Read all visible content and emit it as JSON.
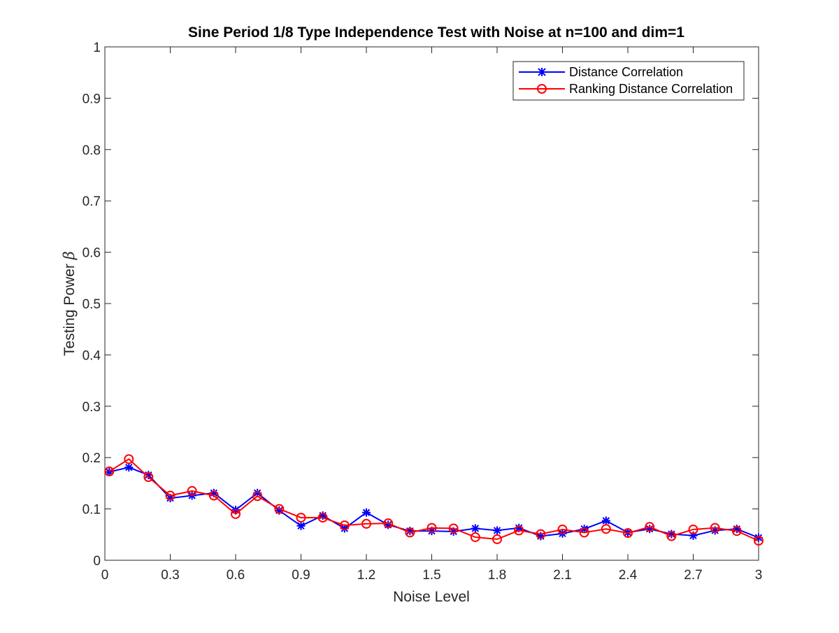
{
  "chart_data": {
    "type": "line",
    "title": "Sine Period 1/8 Type Independence Test with Noise at n=100 and dim=1",
    "xlabel": "Noise Level",
    "ylabel_text": "Testing Power",
    "ylabel_symbol": "β",
    "xlim": [
      0,
      3
    ],
    "ylim": [
      0,
      1
    ],
    "xticks": [
      "0",
      "0.3",
      "0.6",
      "0.9",
      "1.2",
      "1.5",
      "1.8",
      "2.1",
      "2.4",
      "2.7",
      "3"
    ],
    "yticks": [
      "0",
      "0.1",
      "0.2",
      "0.3",
      "0.4",
      "0.5",
      "0.6",
      "0.7",
      "0.8",
      "0.9",
      "1"
    ],
    "grid": false,
    "legend_position": "top-right",
    "x": [
      0.02,
      0.11,
      0.2,
      0.3,
      0.4,
      0.5,
      0.6,
      0.7,
      0.8,
      0.9,
      1.0,
      1.1,
      1.2,
      1.3,
      1.4,
      1.5,
      1.6,
      1.7,
      1.8,
      1.9,
      2.0,
      2.1,
      2.2,
      2.3,
      2.4,
      2.5,
      2.6,
      2.7,
      2.8,
      2.9,
      3.0
    ],
    "series": [
      {
        "name": "Distance Correlation",
        "color": "#0000ff",
        "marker": "asterisk",
        "values": [
          0.172,
          0.181,
          0.166,
          0.121,
          0.126,
          0.131,
          0.098,
          0.131,
          0.097,
          0.067,
          0.087,
          0.062,
          0.093,
          0.069,
          0.057,
          0.057,
          0.056,
          0.062,
          0.058,
          0.063,
          0.047,
          0.052,
          0.061,
          0.077,
          0.054,
          0.061,
          0.051,
          0.048,
          0.058,
          0.061,
          0.044
        ]
      },
      {
        "name": "Ranking Distance Correlation",
        "color": "#ff0000",
        "marker": "circle",
        "values": [
          0.173,
          0.197,
          0.162,
          0.126,
          0.135,
          0.126,
          0.09,
          0.125,
          0.1,
          0.083,
          0.083,
          0.068,
          0.071,
          0.072,
          0.054,
          0.063,
          0.062,
          0.045,
          0.041,
          0.058,
          0.051,
          0.06,
          0.054,
          0.061,
          0.053,
          0.065,
          0.047,
          0.06,
          0.063,
          0.057,
          0.038
        ]
      }
    ]
  }
}
